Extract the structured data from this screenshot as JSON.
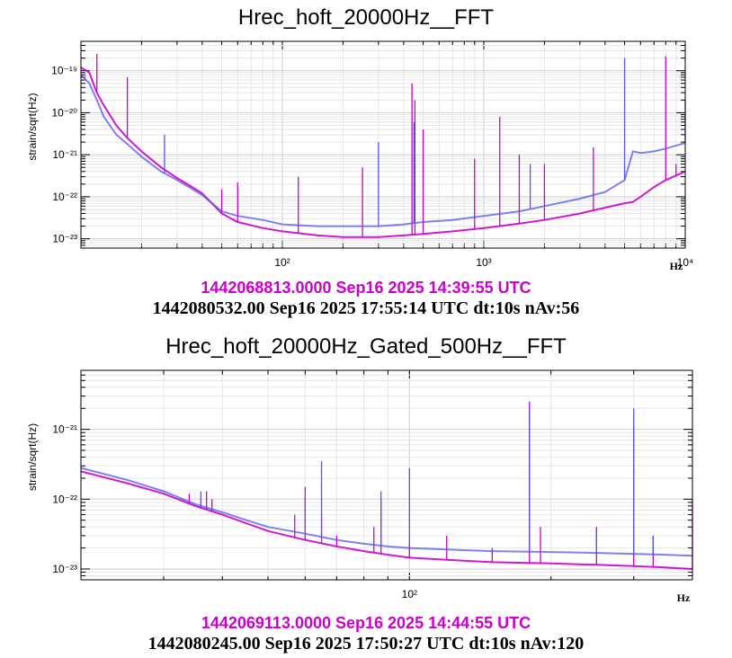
{
  "colors": {
    "ref": "#cc00cc",
    "cur": "#5555ee"
  },
  "charts": [
    {
      "title": "Hrec_hoft_20000Hz__FFT",
      "ref_label": "1442068813.0000 Sep16 2025 14:39:55 UTC",
      "info_label": "1442080532.00 Sep16 2025 17:55:14 UTC dt:10s nAv:56",
      "ylabel": "strain/sqrt(Hz)",
      "xunit": "Hz",
      "xtick_labels": [
        "10²",
        "10³",
        "10⁴"
      ],
      "ytick_labels": [
        "10⁻¹⁹",
        "10⁻²⁰",
        "10⁻²¹",
        "10⁻²²",
        "10⁻²³"
      ]
    },
    {
      "title": "Hrec_hoft_20000Hz_Gated_500Hz__FFT",
      "ref_label": "1442069113.0000 Sep16 2025 14:44:55 UTC",
      "info_label": "1442080245.00 Sep16 2025 17:50:27 UTC dt:10s nAv:120",
      "ylabel": "strain/sqrt(Hz)",
      "xunit": "Hz",
      "xtick_labels": [
        "10²"
      ],
      "ytick_labels": [
        "10⁻²¹",
        "10⁻²²",
        "10⁻²³"
      ]
    }
  ],
  "chart_data": [
    {
      "type": "line",
      "xscale": "log",
      "yscale": "log",
      "xlim": [
        10,
        10000
      ],
      "ylim": [
        6e-24,
        5e-19
      ],
      "grid": true,
      "x": [
        10,
        11,
        12,
        13,
        15,
        17,
        20,
        25,
        30,
        35,
        40,
        50,
        60,
        80,
        100,
        150,
        200,
        300,
        400,
        500,
        700,
        1000,
        1500,
        2000,
        3000,
        4000,
        5000,
        5500,
        6000,
        7000,
        8000,
        10000
      ],
      "series": [
        {
          "role": "reference",
          "color": "#cc00cc",
          "values": [
            1.2e-19,
            9e-20,
            3e-20,
            1.5e-20,
            5e-21,
            2.5e-21,
            1.2e-21,
            5e-22,
            2.8e-22,
            1.8e-22,
            1.2e-22,
            4e-23,
            2.5e-23,
            1.8e-23,
            1.5e-23,
            1.2e-23,
            1.1e-23,
            1.1e-23,
            1.2e-23,
            1.3e-23,
            1.5e-23,
            1.8e-23,
            2.3e-23,
            2.8e-23,
            4e-23,
            5.5e-23,
            7e-23,
            7.5e-23,
            1e-22,
            1.7e-22,
            2.5e-22,
            4e-22
          ],
          "peaks": [
            [
              12,
              2.5e-19
            ],
            [
              17,
              7e-20
            ],
            [
              50,
              1.5e-22
            ],
            [
              60,
              2.2e-22
            ],
            [
              120,
              3e-22
            ],
            [
              250,
              5e-22
            ],
            [
              440,
              5e-20
            ],
            [
              455,
              2e-20
            ],
            [
              500,
              4e-21
            ],
            [
              900,
              8e-22
            ],
            [
              1200,
              8e-21
            ],
            [
              1500,
              1e-21
            ],
            [
              2000,
              6e-22
            ],
            [
              3500,
              1.5e-21
            ],
            [
              8000,
              2.2e-19
            ],
            [
              9000,
              6e-22
            ]
          ]
        },
        {
          "role": "current",
          "color": "#5555ee",
          "values": [
            8e-20,
            5e-20,
            2e-20,
            8e-21,
            3e-21,
            1.8e-21,
            9e-22,
            4e-22,
            2.5e-22,
            1.6e-22,
            1.1e-22,
            4.5e-23,
            3.5e-23,
            2.8e-23,
            2.2e-23,
            2e-23,
            2e-23,
            2e-23,
            2.2e-23,
            2.5e-23,
            2.8e-23,
            3.5e-23,
            4.5e-23,
            6e-23,
            9e-23,
            1.3e-22,
            2.5e-22,
            1.2e-21,
            1.1e-21,
            1.2e-21,
            1.4e-21,
            1.9e-21
          ],
          "peaks": [
            [
              26,
              3e-21
            ],
            [
              300,
              2e-21
            ],
            [
              450,
              6e-21
            ],
            [
              1700,
              6e-22
            ],
            [
              5000,
              2e-19
            ],
            [
              10000,
              2e-20
            ]
          ]
        }
      ]
    },
    {
      "type": "line",
      "xscale": "log",
      "yscale": "log",
      "xlim": [
        20,
        400
      ],
      "ylim": [
        7e-24,
        7e-21
      ],
      "grid": true,
      "x": [
        20,
        25,
        30,
        35,
        40,
        45,
        50,
        60,
        70,
        80,
        90,
        100,
        120,
        150,
        200,
        250,
        300,
        350,
        400
      ],
      "series": [
        {
          "role": "reference",
          "color": "#cc00cc",
          "values": [
            2.5e-22,
            1.7e-22,
            1.2e-22,
            8e-23,
            6e-23,
            4.5e-23,
            3.5e-23,
            2.6e-23,
            2.1e-23,
            1.8e-23,
            1.6e-23,
            1.45e-23,
            1.35e-23,
            1.25e-23,
            1.2e-23,
            1.15e-23,
            1.1e-23,
            1.05e-23,
            1e-23
          ],
          "peaks": [
            [
              34,
              1.2e-22
            ],
            [
              36,
              1e-22
            ],
            [
              37,
              1.3e-22
            ],
            [
              38,
              1e-22
            ],
            [
              40,
              6e-23
            ],
            [
              57,
              6e-23
            ],
            [
              60,
              1.5e-22
            ],
            [
              65,
              6e-23
            ],
            [
              70,
              3e-23
            ],
            [
              84,
              4e-23
            ],
            [
              87,
              1e-22
            ],
            [
              100,
              2.5e-23
            ],
            [
              120,
              3e-23
            ],
            [
              150,
              2e-23
            ],
            [
              180,
              2.5e-21
            ],
            [
              190,
              4e-23
            ],
            [
              250,
              4e-23
            ],
            [
              300,
              1.1e-21
            ],
            [
              330,
              3e-23
            ],
            [
              400,
              1e-22
            ]
          ]
        },
        {
          "role": "current",
          "color": "#5555ee",
          "values": [
            2.8e-22,
            1.9e-22,
            1.3e-22,
            8.5e-23,
            6.5e-23,
            5e-23,
            4e-23,
            3.2e-23,
            2.6e-23,
            2.3e-23,
            2.1e-23,
            2e-23,
            1.9e-23,
            1.8e-23,
            1.75e-23,
            1.7e-23,
            1.65e-23,
            1.6e-23,
            1.55e-23
          ],
          "peaks": [
            [
              36,
              1.3e-22
            ],
            [
              60,
              1.2e-22
            ],
            [
              65,
              3.5e-22
            ],
            [
              87,
              1.3e-22
            ],
            [
              100,
              2.8e-22
            ],
            [
              180,
              2e-21
            ],
            [
              250,
              3.5e-23
            ],
            [
              300,
              2e-21
            ],
            [
              330,
              3e-23
            ]
          ]
        }
      ]
    }
  ]
}
